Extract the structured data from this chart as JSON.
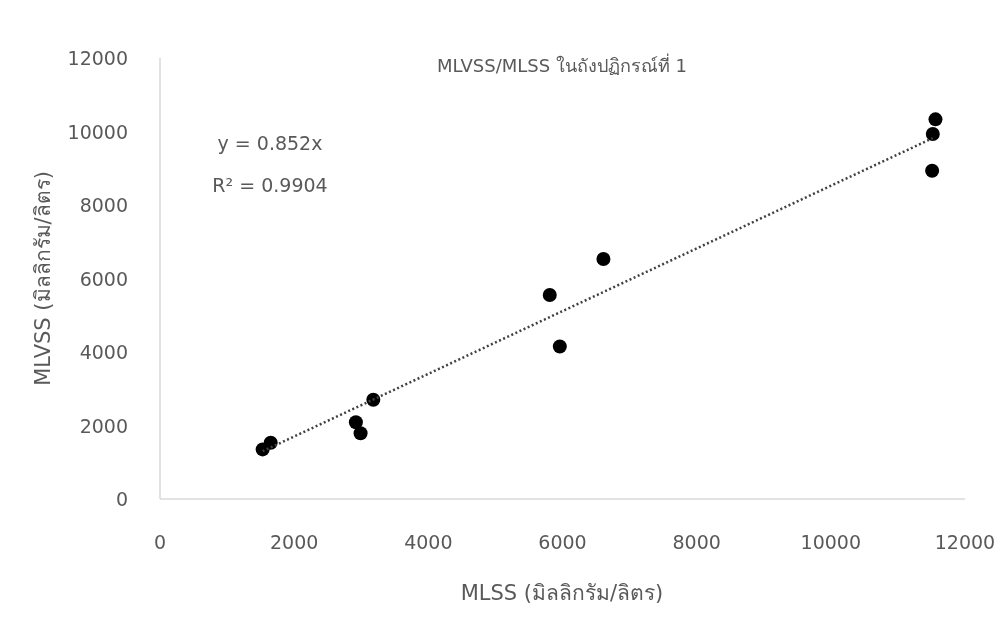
{
  "chart_data": {
    "type": "scatter",
    "title": "MLVSS/MLSS ในถังปฏิกรณ์ที่ 1",
    "xlabel": "MLSS (มิลลิกรัม/ลิตร)",
    "ylabel": "MLVSS (มิลลิกรัม/ลิตร)",
    "xlim": [
      0,
      12000
    ],
    "ylim": [
      0,
      12000
    ],
    "xticks": [
      0,
      2000,
      4000,
      6000,
      8000,
      10000,
      12000
    ],
    "yticks": [
      0,
      2000,
      4000,
      6000,
      8000,
      10000,
      12000
    ],
    "grid": false,
    "series": [
      {
        "color": "#000000",
        "marker": "circle",
        "x": [
          1530,
          1650,
          2920,
          2990,
          3180,
          5810,
          5960,
          6610,
          11510,
          11520,
          11560
        ],
        "values": [
          1350,
          1530,
          2090,
          1790,
          2700,
          5550,
          4150,
          6530,
          8930,
          9930,
          10330
        ]
      },
      {
        "type": "line",
        "color": "#404040",
        "line_style": "dotted",
        "x": [
          1530,
          11520
        ],
        "values": [
          1300,
          9820
        ]
      }
    ],
    "annotations": [
      "y = 0.852x",
      "R² = 0.9904"
    ]
  }
}
